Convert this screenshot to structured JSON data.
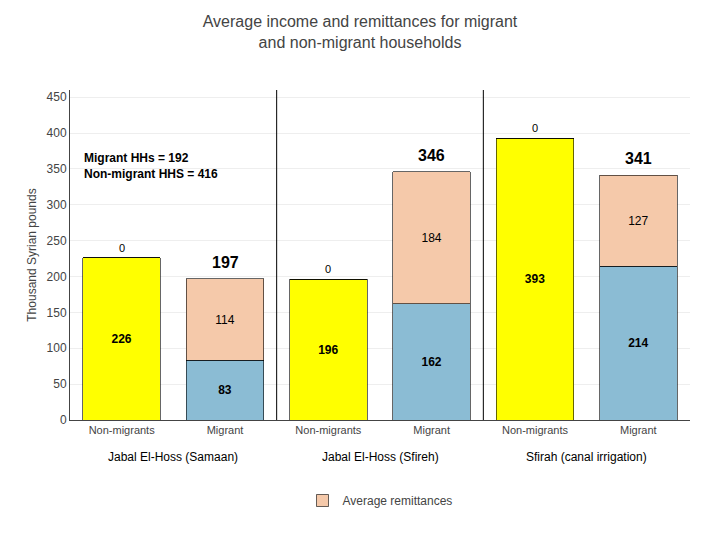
{
  "chart_data": {
    "type": "bar",
    "stacked": true,
    "title": "Average income and remittances for migrant\nand non-migrant households",
    "y_label": "Thousand Syrian pounds",
    "annotation": "Migrant HHs = 192\nNon-migrant HHS = 416",
    "categories": [
      "Non-migrants",
      "Migrant",
      "Non-migrants",
      "Migrant",
      "Non-migrants",
      "Migrant"
    ],
    "groups": [
      "Jabal El-Hoss (Samaan)",
      "Jabal El-Hoss (Sfireh)",
      "Sfirah (canal irrigation)"
    ],
    "series": [
      {
        "values": [
          226,
          83,
          196,
          162,
          393,
          214
        ],
        "colors": [
          "#FFFF00",
          "#8BBCD4",
          "#FFFF00",
          "#8BBCD4",
          "#FFFF00",
          "#8BBCD4"
        ]
      },
      {
        "name": "Average remittances",
        "values": [
          0,
          114,
          0,
          184,
          0,
          127
        ],
        "color": "#F5C9AA"
      }
    ],
    "totals": [
      null,
      197,
      null,
      346,
      null,
      341
    ],
    "ylim": [
      0,
      460
    ],
    "yticks": [
      0,
      50,
      100,
      150,
      200,
      250,
      300,
      350,
      400,
      450
    ],
    "grid": true,
    "data_labels": true,
    "legend": "bottom"
  }
}
